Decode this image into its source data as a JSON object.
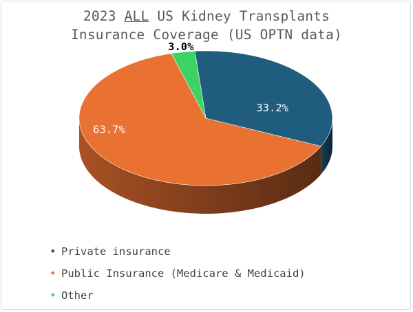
{
  "chart_data": {
    "type": "pie",
    "title_parts": [
      "2023 ",
      "ALL",
      " US Kidney Transplants"
    ],
    "title_line2": "Insurance Coverage (US OPTN data)",
    "slices": [
      {
        "name": "Private insurance",
        "value": 33.2,
        "label": "33.2%",
        "color": "#1f5c7d"
      },
      {
        "name": "Public Insurance (Medicare & Medicaid)",
        "value": 63.7,
        "label": "63.7%",
        "color": "#e97132"
      },
      {
        "name": "Other",
        "value": 3.0,
        "label": "3.0%",
        "color": "#3ed164"
      }
    ],
    "legend_position": "bottom",
    "style": "3d"
  }
}
